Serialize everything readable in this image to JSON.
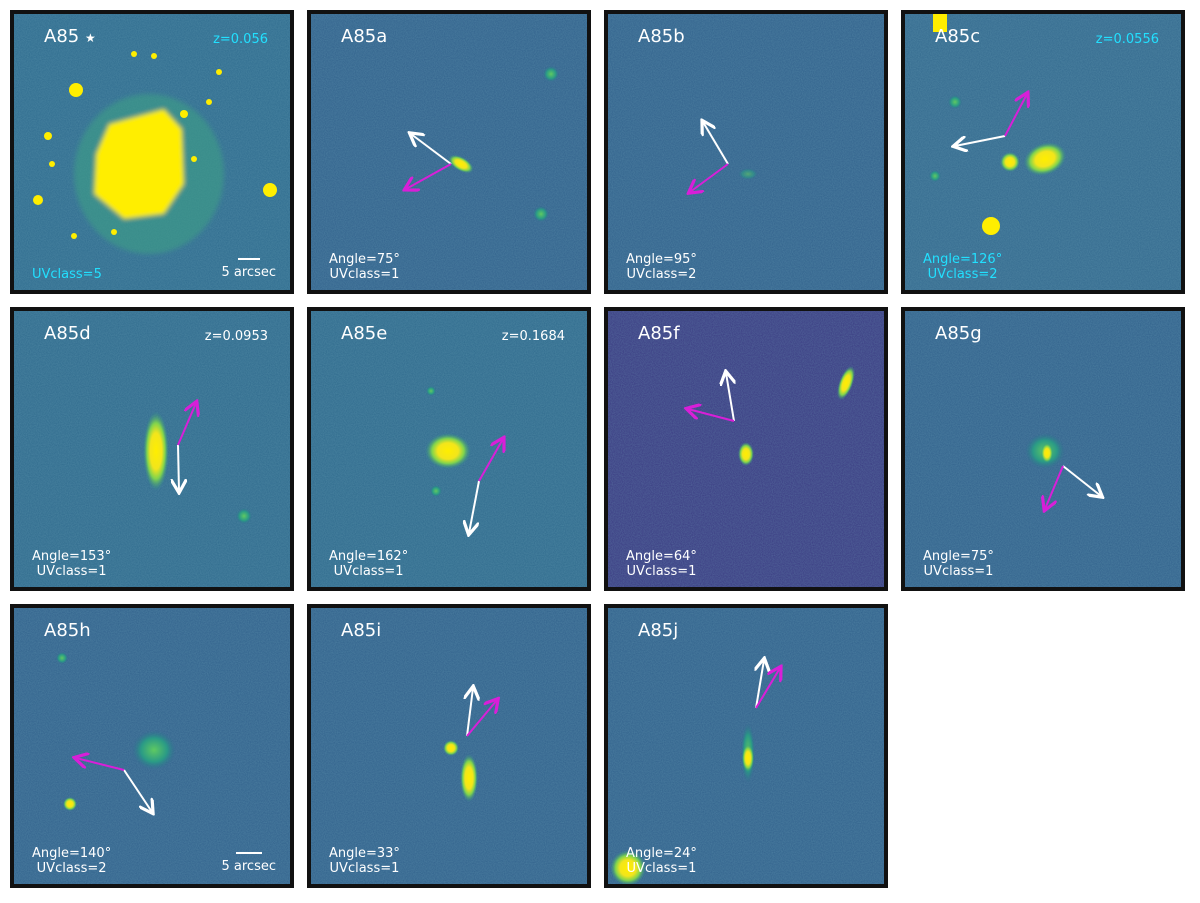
{
  "colors": {
    "cyan": "#22e0ff",
    "white": "#ffffff",
    "magenta": "#d81fd8",
    "yellow": "#ffee00"
  },
  "scale_label": "5 arcsec",
  "panels": [
    {
      "id": "A85",
      "title": "A85",
      "star": "★",
      "z": "z=0.056",
      "info_color": "cyan",
      "angle": "",
      "uvclass": "UVclass=5"
    },
    {
      "id": "A85a",
      "title": "A85a",
      "z": "",
      "angle": "Angle=75°",
      "uvclass": "UVclass=1"
    },
    {
      "id": "A85b",
      "title": "A85b",
      "z": "",
      "angle": "Angle=95°",
      "uvclass": "UVclass=2"
    },
    {
      "id": "A85c",
      "title": "A85c",
      "z": "z=0.0556",
      "info_color": "cyan",
      "angle": "Angle=126°",
      "uvclass": "UVclass=2"
    },
    {
      "id": "A85d",
      "title": "A85d",
      "z": "z=0.0953",
      "angle": "Angle=153°",
      "uvclass": "UVclass=1"
    },
    {
      "id": "A85e",
      "title": "A85e",
      "z": "z=0.1684",
      "angle": "Angle=162°",
      "uvclass": "UVclass=1"
    },
    {
      "id": "A85f",
      "title": "A85f",
      "z": "",
      "angle": "Angle=64°",
      "uvclass": "UVclass=1"
    },
    {
      "id": "A85g",
      "title": "A85g",
      "z": "",
      "angle": "Angle=75°",
      "uvclass": "UVclass=1"
    },
    {
      "id": "A85h",
      "title": "A85h",
      "z": "",
      "angle": "Angle=140°",
      "uvclass": "UVclass=2"
    },
    {
      "id": "A85i",
      "title": "A85i",
      "z": "",
      "angle": "Angle=33°",
      "uvclass": "UVclass=1"
    },
    {
      "id": "A85j",
      "title": "A85j",
      "z": "",
      "angle": "Angle=24°",
      "uvclass": "UVclass=1"
    }
  ]
}
